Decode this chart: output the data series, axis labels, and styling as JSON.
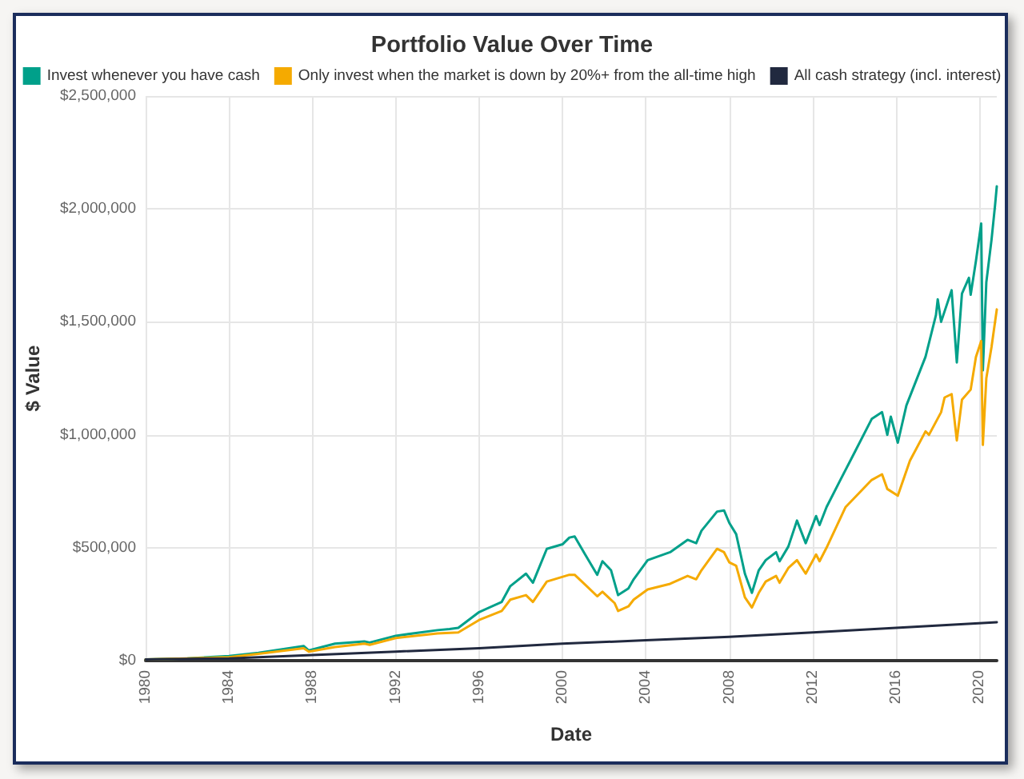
{
  "chart_data": {
    "type": "line",
    "title": "Portfolio Value Over Time",
    "xlabel": "Date",
    "ylabel": "$ Value",
    "xlim": [
      "1980-01",
      "2020-11"
    ],
    "xticks": [
      "1980",
      "1984",
      "1988",
      "1992",
      "1996",
      "2000",
      "2004",
      "2008",
      "2012",
      "2016",
      "2020"
    ],
    "ylim": [
      0,
      2500000
    ],
    "yticks": [
      {
        "value": 0,
        "label": "$0"
      },
      {
        "value": 500000,
        "label": "$500,000"
      },
      {
        "value": 1000000,
        "label": "$1,000,000"
      },
      {
        "value": 1500000,
        "label": "$1,500,000"
      },
      {
        "value": 2000000,
        "label": "$2,000,000"
      },
      {
        "value": 2500000,
        "label": "$2,500,000"
      }
    ],
    "grid": true,
    "legend": "top",
    "series": [
      {
        "name": "Invest whenever you have cash",
        "color": "#00a08a",
        "x": [
          "1980-01",
          "1982-01",
          "1984-01",
          "1985-06",
          "1987-08",
          "1987-11",
          "1989-02",
          "1990-07",
          "1990-10",
          "1992-01",
          "1994-01",
          "1994-08",
          "1995-01",
          "1996-01",
          "1997-02",
          "1997-07",
          "1998-04",
          "1998-08",
          "1999-04",
          "2000-01",
          "2000-05",
          "2000-08",
          "2001-02",
          "2001-09",
          "2001-12",
          "2002-05",
          "2002-09",
          "2003-03",
          "2003-06",
          "2004-02",
          "2005-03",
          "2006-01",
          "2006-06",
          "2006-09",
          "2007-06",
          "2007-10",
          "2008-01",
          "2008-05",
          "2008-10",
          "2009-02",
          "2009-06",
          "2009-10",
          "2010-04",
          "2010-06",
          "2010-11",
          "2011-04",
          "2011-09",
          "2012-03",
          "2012-05",
          "2012-09",
          "2013-05",
          "2014-01",
          "2014-11",
          "2015-05",
          "2015-08",
          "2015-10",
          "2016-02",
          "2016-07",
          "2017-06",
          "2017-12",
          "2018-01",
          "2018-03",
          "2018-09",
          "2018-12",
          "2019-03",
          "2019-07",
          "2019-08",
          "2019-11",
          "2020-02",
          "2020-03",
          "2020-05",
          "2020-08",
          "2020-10",
          "2020-11"
        ],
        "values": [
          5000,
          10000,
          20000,
          35000,
          65000,
          45000,
          75000,
          85000,
          80000,
          110000,
          135000,
          140000,
          145000,
          215000,
          260000,
          330000,
          385000,
          345000,
          495000,
          515000,
          545000,
          550000,
          470000,
          380000,
          440000,
          400000,
          290000,
          320000,
          360000,
          445000,
          480000,
          535000,
          520000,
          575000,
          660000,
          665000,
          610000,
          560000,
          385000,
          300000,
          400000,
          445000,
          480000,
          440000,
          505000,
          620000,
          520000,
          640000,
          600000,
          680000,
          800000,
          920000,
          1070000,
          1100000,
          1000000,
          1080000,
          965000,
          1130000,
          1345000,
          1530000,
          1600000,
          1500000,
          1640000,
          1320000,
          1625000,
          1695000,
          1620000,
          1770000,
          1935000,
          1285000,
          1675000,
          1865000,
          2015000,
          2100000
        ]
      },
      {
        "name": "Only invest when the market is down by 20%+ from the all-time high",
        "color": "#f5aa00",
        "x": [
          "1980-01",
          "1982-01",
          "1984-01",
          "1985-06",
          "1987-08",
          "1987-11",
          "1989-02",
          "1990-07",
          "1990-10",
          "1992-01",
          "1994-01",
          "1995-01",
          "1996-01",
          "1997-02",
          "1997-07",
          "1998-04",
          "1998-08",
          "1999-04",
          "2000-05",
          "2000-08",
          "2001-03",
          "2001-09",
          "2001-12",
          "2002-07",
          "2002-09",
          "2003-03",
          "2003-06",
          "2004-02",
          "2005-03",
          "2006-01",
          "2006-06",
          "2006-09",
          "2007-06",
          "2007-10",
          "2008-01",
          "2008-05",
          "2008-10",
          "2009-02",
          "2009-06",
          "2009-10",
          "2010-04",
          "2010-06",
          "2010-11",
          "2011-04",
          "2011-09",
          "2012-03",
          "2012-05",
          "2012-09",
          "2013-08",
          "2014-11",
          "2015-05",
          "2015-08",
          "2016-02",
          "2016-09",
          "2017-06",
          "2017-08",
          "2018-03",
          "2018-05",
          "2018-09",
          "2018-12",
          "2019-03",
          "2019-08",
          "2019-11",
          "2020-02",
          "2020-03",
          "2020-05",
          "2020-08",
          "2020-11"
        ],
        "values": [
          5000,
          10000,
          15000,
          30000,
          55000,
          40000,
          60000,
          75000,
          70000,
          100000,
          120000,
          125000,
          180000,
          220000,
          270000,
          290000,
          260000,
          350000,
          380000,
          380000,
          330000,
          285000,
          305000,
          255000,
          220000,
          240000,
          270000,
          315000,
          340000,
          375000,
          360000,
          400000,
          495000,
          480000,
          435000,
          420000,
          280000,
          235000,
          300000,
          350000,
          375000,
          345000,
          410000,
          445000,
          385000,
          470000,
          440000,
          500000,
          680000,
          800000,
          825000,
          760000,
          730000,
          885000,
          1015000,
          1000000,
          1100000,
          1165000,
          1180000,
          975000,
          1155000,
          1200000,
          1345000,
          1415000,
          955000,
          1250000,
          1390000,
          1555000
        ]
      },
      {
        "name": "All cash strategy (incl. interest)",
        "color": "#21293f",
        "x": [
          "1980-01",
          "1984-01",
          "1988-01",
          "1992-01",
          "1996-01",
          "2000-01",
          "2004-01",
          "2008-01",
          "2012-01",
          "2016-01",
          "2020-11"
        ],
        "values": [
          5000,
          10000,
          25000,
          40000,
          55000,
          75000,
          90000,
          105000,
          125000,
          145000,
          170000
        ]
      }
    ]
  }
}
